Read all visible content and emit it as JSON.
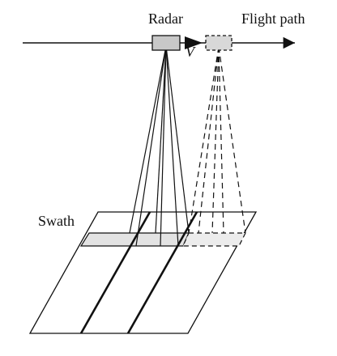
{
  "labels": {
    "radar": "Radar",
    "flight_path": "Flight path",
    "velocity": "V",
    "swath": "Swath"
  },
  "colors": {
    "stroke": "#111111",
    "box_fill": "#c8c8c8",
    "swath_fill": "#e3e3e3",
    "background": "#ffffff"
  }
}
